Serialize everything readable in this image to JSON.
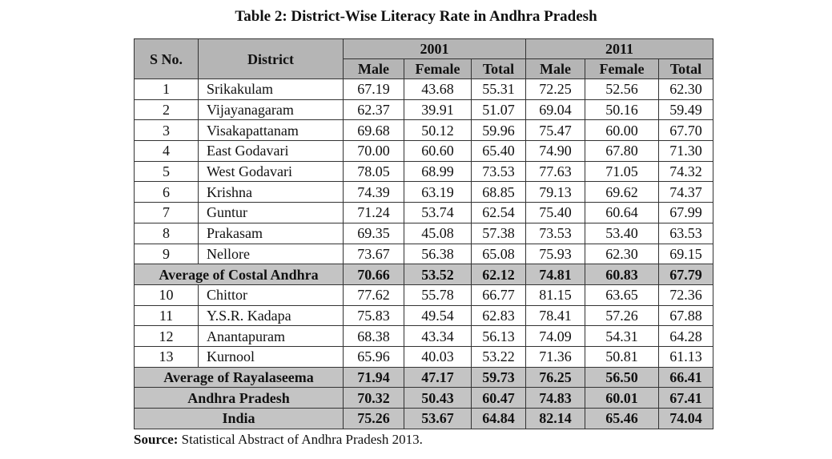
{
  "title": "Table 2: District-Wise Literacy Rate in Andhra Pradesh",
  "table": {
    "header": {
      "s_no": "S No.",
      "district": "District",
      "years": [
        "2001",
        "2011"
      ],
      "subcolumns": [
        "Male",
        "Female",
        "Total",
        "Male",
        "Female",
        "Total"
      ]
    },
    "rows": [
      [
        "1",
        "Srikakulam",
        "67.19",
        "43.68",
        "55.31",
        "72.25",
        "52.56",
        "62.30"
      ],
      [
        "2",
        "Vijayanagaram",
        "62.37",
        "39.91",
        "51.07",
        "69.04",
        "50.16",
        "59.49"
      ],
      [
        "3",
        "Visakapattanam",
        "69.68",
        "50.12",
        "59.96",
        "75.47",
        "60.00",
        "67.70"
      ],
      [
        "4",
        "East Godavari",
        "70.00",
        "60.60",
        "65.40",
        "74.90",
        "67.80",
        "71.30"
      ],
      [
        "5",
        "West Godavari",
        "78.05",
        "68.99",
        "73.53",
        "77.63",
        "71.05",
        "74.32"
      ],
      [
        "6",
        "Krishna",
        "74.39",
        "63.19",
        "68.85",
        "79.13",
        "69.62",
        "74.37"
      ],
      [
        "7",
        "Guntur",
        "71.24",
        "53.74",
        "62.54",
        "75.40",
        "60.64",
        "67.99"
      ],
      [
        "8",
        "Prakasam",
        "69.35",
        "45.08",
        "57.38",
        "73.53",
        "53.40",
        "63.53"
      ],
      [
        "9",
        "Nellore",
        "73.67",
        "56.38",
        "65.08",
        "75.93",
        "62.30",
        "69.15"
      ],
      [
        "Average of Costal Andhra",
        "70.66",
        "53.52",
        "62.12",
        "74.81",
        "60.83",
        "67.79"
      ],
      [
        "10",
        "Chittor",
        "77.62",
        "55.78",
        "66.77",
        "81.15",
        "63.65",
        "72.36"
      ],
      [
        "11",
        "Y.S.R. Kadapa",
        "75.83",
        "49.54",
        "62.83",
        "78.41",
        "57.26",
        "67.88"
      ],
      [
        "12",
        "Anantapuram",
        "68.38",
        "43.34",
        "56.13",
        "74.09",
        "54.31",
        "64.28"
      ],
      [
        "13",
        "Kurnool",
        "65.96",
        "40.03",
        "53.22",
        "71.36",
        "50.81",
        "61.13"
      ],
      [
        "Average of Rayalaseema",
        "71.94",
        "47.17",
        "59.73",
        "76.25",
        "56.50",
        "66.41"
      ],
      [
        "Andhra Pradesh",
        "70.32",
        "50.43",
        "60.47",
        "74.83",
        "60.01",
        "67.41"
      ],
      [
        "India",
        "75.26",
        "53.67",
        "64.84",
        "82.14",
        "65.46",
        "74.04"
      ]
    ]
  },
  "source": {
    "label": "Source:",
    "text": "Statistical Abstract of Andhra Pradesh 2013."
  }
}
